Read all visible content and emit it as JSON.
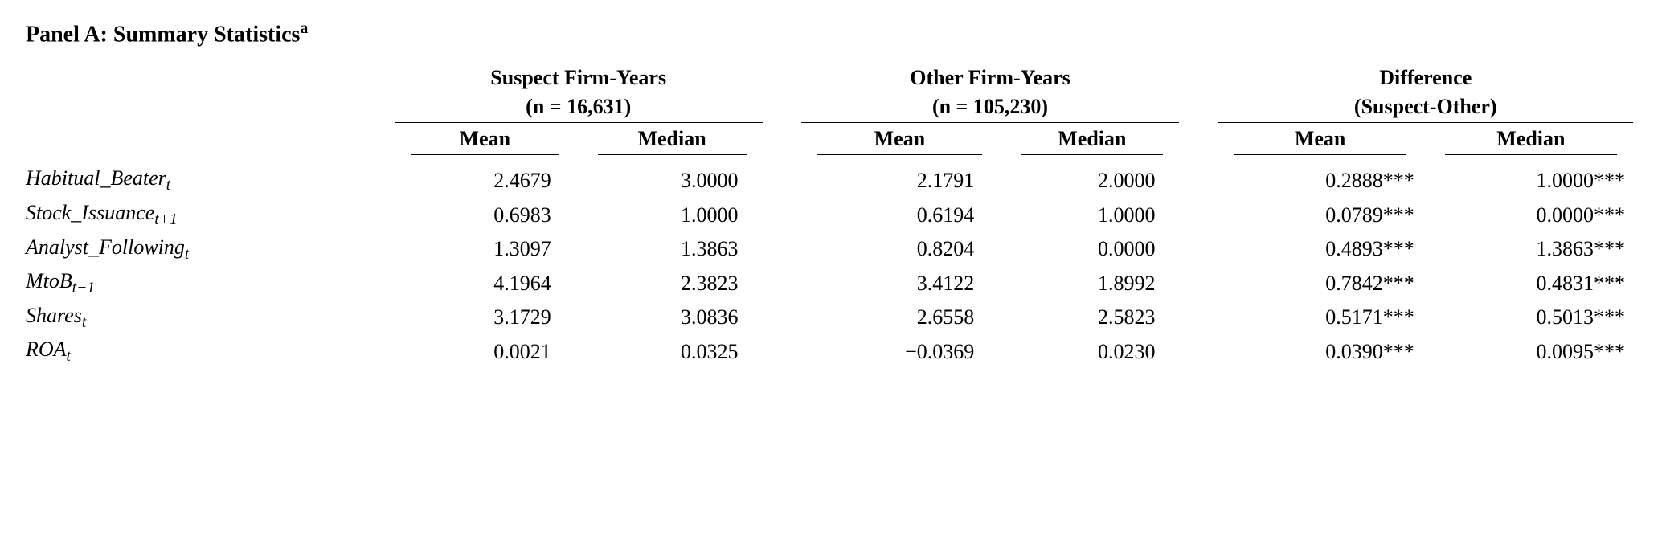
{
  "panel": {
    "title_prefix": "Panel A: Summary Statistics",
    "title_sup": "a"
  },
  "groups": {
    "g1": {
      "title_l1": "Suspect Firm-Years",
      "title_l2": "(n = 16,631)"
    },
    "g2": {
      "title_l1": "Other Firm-Years",
      "title_l2": "(n = 105,230)"
    },
    "g3": {
      "title_l1": "Difference",
      "title_l2": "(Suspect-Other)"
    }
  },
  "subcols": {
    "mean": "Mean",
    "median": "Median"
  },
  "rows": [
    {
      "label_html": "Habitual_Beater<sub>t</sub>",
      "g1_mean": "2.4679",
      "g1_med": "3.0000",
      "g2_mean": "2.1791",
      "g2_med": "2.0000",
      "g3_mean": "0.2888***",
      "g3_med": "1.0000***"
    },
    {
      "label_html": "Stock_Issuance<sub>t+1</sub>",
      "g1_mean": "0.6983",
      "g1_med": "1.0000",
      "g2_mean": "0.6194",
      "g2_med": "1.0000",
      "g3_mean": "0.0789***",
      "g3_med": "0.0000***"
    },
    {
      "label_html": "Analyst_Following<sub>t</sub>",
      "g1_mean": "1.3097",
      "g1_med": "1.3863",
      "g2_mean": "0.8204",
      "g2_med": "0.0000",
      "g3_mean": "0.4893***",
      "g3_med": "1.3863***"
    },
    {
      "label_html": "MtoB<sub>t−1</sub>",
      "g1_mean": "4.1964",
      "g1_med": "2.3823",
      "g2_mean": "3.4122",
      "g2_med": "1.8992",
      "g3_mean": "0.7842***",
      "g3_med": "0.4831***"
    },
    {
      "label_html": "Shares<sub>t</sub>",
      "g1_mean": "3.1729",
      "g1_med": "3.0836",
      "g2_mean": "2.6558",
      "g2_med": "2.5823",
      "g3_mean": "0.5171***",
      "g3_med": "0.5013***"
    },
    {
      "label_html": "ROA<sub>t</sub>",
      "g1_mean": "0.0021",
      "g1_med": "0.0325",
      "g2_mean": "−0.0369",
      "g2_med": "0.0230",
      "g3_mean": "0.0390***",
      "g3_med": "0.0095***"
    }
  ],
  "style": {
    "sig_marker": "***",
    "rule_color": "#000000"
  }
}
